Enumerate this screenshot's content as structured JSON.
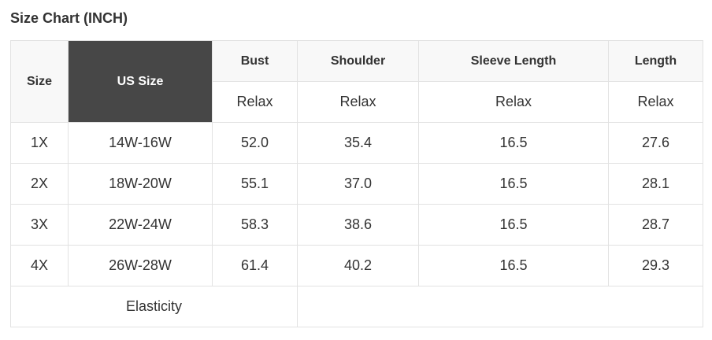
{
  "title": "Size Chart (INCH)",
  "headers": {
    "size": "Size",
    "us_size": "US Size",
    "cols": [
      "Bust",
      "Shoulder",
      "Sleeve Length",
      "Length"
    ],
    "sub": [
      "Relax",
      "Relax",
      "Relax",
      "Relax"
    ]
  },
  "rows": [
    [
      "1X",
      "14W-16W",
      "52.0",
      "35.4",
      "16.5",
      "27.6"
    ],
    [
      "2X",
      "18W-20W",
      "55.1",
      "37.0",
      "16.5",
      "28.1"
    ],
    [
      "3X",
      "22W-24W",
      "58.3",
      "38.6",
      "16.5",
      "28.7"
    ],
    [
      "4X",
      "26W-28W",
      "61.4",
      "40.2",
      "16.5",
      "29.3"
    ]
  ],
  "footer": {
    "label": "Elasticity",
    "value": ""
  }
}
